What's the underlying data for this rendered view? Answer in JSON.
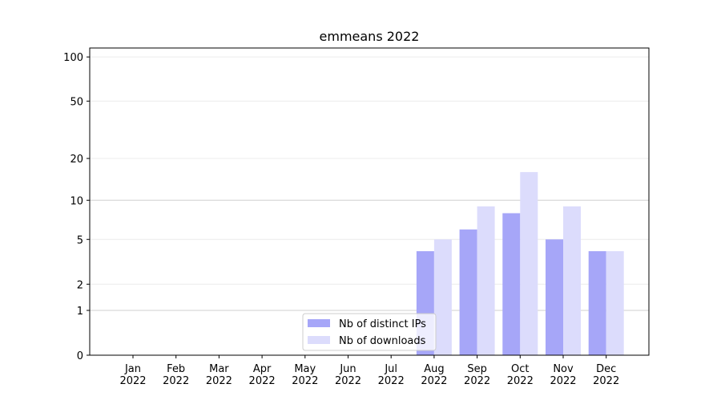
{
  "chart_data": {
    "type": "bar",
    "title": "emmeans 2022",
    "categories": [
      "Jan\n2022",
      "Feb\n2022",
      "Mar\n2022",
      "Apr\n2022",
      "May\n2022",
      "Jun\n2022",
      "Jul\n2022",
      "Aug\n2022",
      "Sep\n2022",
      "Oct\n2022",
      "Nov\n2022",
      "Dec\n2022"
    ],
    "series": [
      {
        "name": "Nb of distinct IPs",
        "color": "#a6a6f8",
        "values": [
          0,
          0,
          0,
          0,
          0,
          0,
          0,
          4,
          6,
          8,
          5,
          4
        ]
      },
      {
        "name": "Nb of downloads",
        "color": "#dcdcfc",
        "values": [
          0,
          0,
          0,
          0,
          0,
          0,
          0,
          5,
          9,
          16,
          9,
          4
        ]
      }
    ],
    "yscale": "log1p",
    "ylim": [
      0,
      115
    ],
    "yticks": [
      0,
      1,
      2,
      5,
      10,
      20,
      50,
      100
    ],
    "grid": true,
    "legend": "lower center"
  }
}
